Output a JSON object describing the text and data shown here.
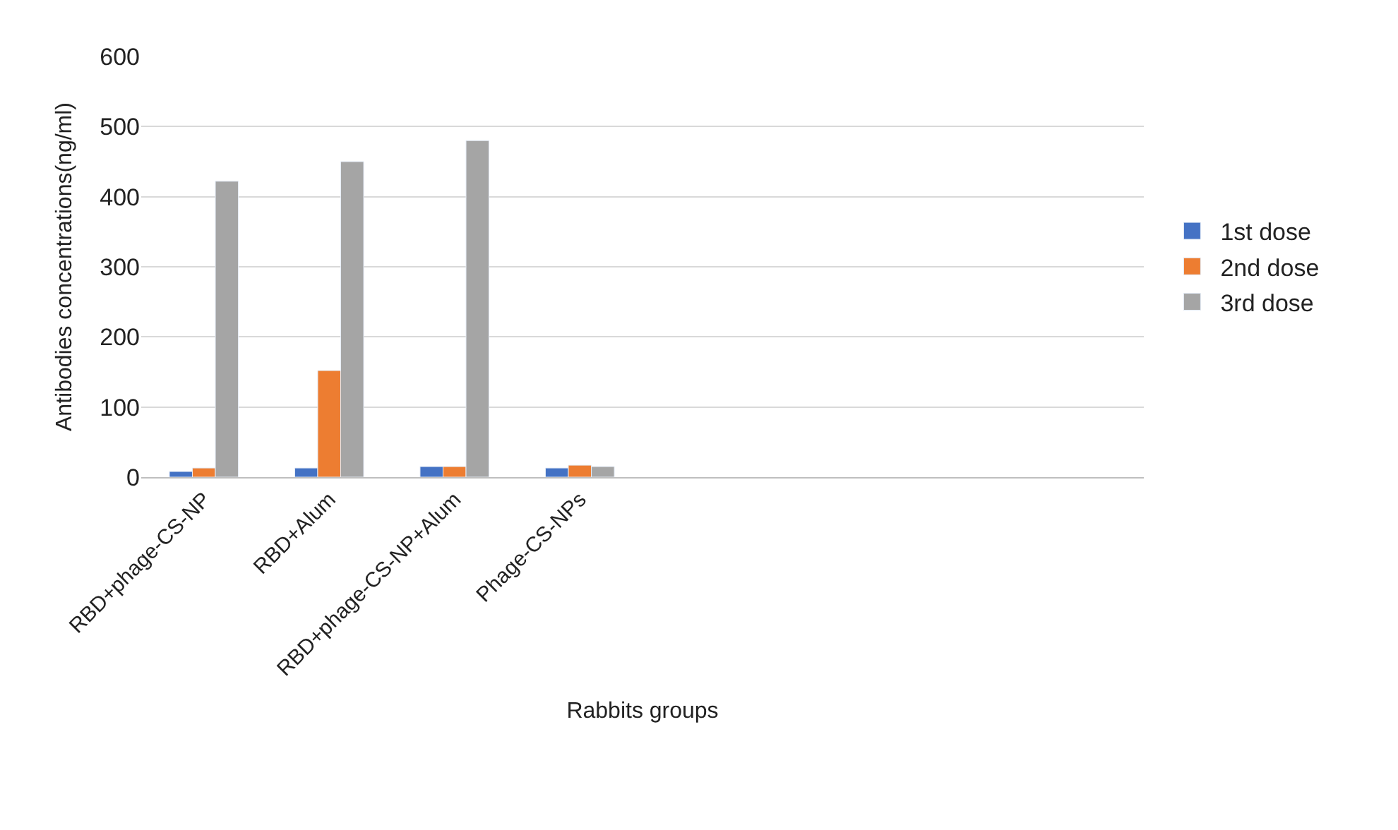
{
  "chart_data": {
    "type": "bar",
    "xlabel": "Rabbits groups",
    "ylabel": "Antibodies concentrations(ng/ml)",
    "categories": [
      "RBD+phage-CS-NP",
      "RBD+Alum",
      "RBD+phage-CS-NP+Alum",
      "Phage-CS-NPs",
      null,
      null,
      null,
      null
    ],
    "series": [
      {
        "name": "1st dose",
        "color": "#4472c4",
        "values": [
          8,
          13,
          15,
          13,
          null,
          null,
          null,
          null
        ]
      },
      {
        "name": "2nd dose",
        "color": "#ed7d31",
        "values": [
          13,
          152,
          15,
          17,
          null,
          null,
          null,
          null
        ]
      },
      {
        "name": "3rd dose",
        "color": "#a5a5a5",
        "values": [
          422,
          450,
          480,
          15,
          null,
          null,
          null,
          null
        ]
      }
    ],
    "ylim": [
      0,
      600
    ],
    "yticks": [
      0,
      100,
      200,
      300,
      400,
      500,
      600
    ],
    "grid": "y",
    "legend": "right"
  }
}
